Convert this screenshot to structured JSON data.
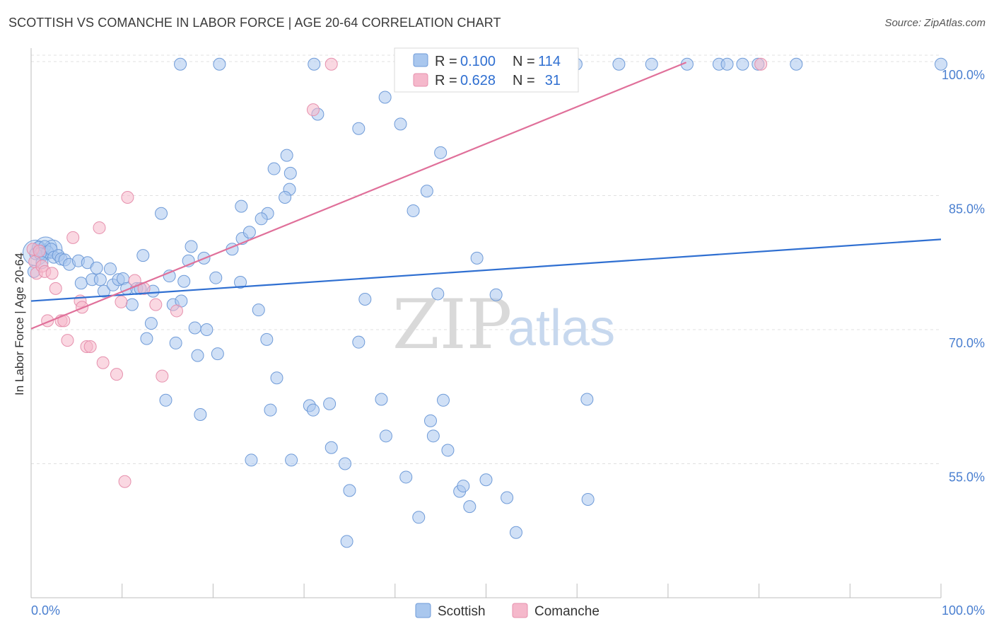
{
  "header": {
    "title": "SCOTTISH VS COMANCHE IN LABOR FORCE | AGE 20-64 CORRELATION CHART",
    "source": "Source: ZipAtlas.com"
  },
  "watermark": {
    "zip": "ZIP",
    "atlas": "atlas"
  },
  "legend_box": {
    "rows": [
      {
        "r_label": "R =",
        "r_value": "0.100",
        "n_label": "N =",
        "n_value": "114",
        "color": "#a9c7ee"
      },
      {
        "r_label": "R =",
        "r_value": "0.628",
        "n_label": "N =",
        "n_value": "31",
        "color": "#f5b8cb"
      }
    ]
  },
  "bottom_legend": [
    {
      "label": "Scottish",
      "color": "#a9c7ee"
    },
    {
      "label": "Comanche",
      "color": "#f5b8cb"
    }
  ],
  "colors": {
    "scottish_fill": "#a9c7ee",
    "scottish_stroke": "#6f9bd8",
    "scottish_line": "#2f6fd1",
    "comanche_fill": "#f5b8cb",
    "comanche_stroke": "#e690ad",
    "comanche_line": "#e0709a",
    "tick_text": "#4a7fd0",
    "grid": "#e0e0e0"
  },
  "chart_data": {
    "type": "scatter",
    "title": "SCOTTISH VS COMANCHE IN LABOR FORCE | AGE 20-64 CORRELATION CHART",
    "xlabel": "",
    "ylabel": "In Labor Force | Age 20-64",
    "xlim": [
      0,
      100
    ],
    "ylim": [
      40,
      101.5
    ],
    "x_tick_labels": [
      "0.0%",
      "100.0%"
    ],
    "y_ticks": [
      55,
      70,
      85,
      100
    ],
    "y_tick_labels": [
      "55.0%",
      "70.0%",
      "85.0%",
      "100.0%"
    ],
    "grid": true,
    "legend_position": "top-center",
    "series": [
      {
        "name": "Scottish",
        "r": 0.1,
        "n": 114,
        "trend": {
          "x": [
            0,
            100
          ],
          "y": [
            73.2,
            80.1
          ]
        },
        "points": [
          [
            0.3,
            76.5
          ],
          [
            0.5,
            78.5
          ],
          [
            0.8,
            79.2
          ],
          [
            1.2,
            78.8
          ],
          [
            1.5,
            79.3
          ],
          [
            1.8,
            78.7
          ],
          [
            2.2,
            79.0
          ],
          [
            1.0,
            78.5
          ],
          [
            1.2,
            77.5
          ],
          [
            2.5,
            78.1
          ],
          [
            3.0,
            78.3
          ],
          [
            3.3,
            77.9
          ],
          [
            3.7,
            77.8
          ],
          [
            4.2,
            77.3
          ],
          [
            5.2,
            77.7
          ],
          [
            5.5,
            75.2
          ],
          [
            6.2,
            77.5
          ],
          [
            6.7,
            75.6
          ],
          [
            7.2,
            76.9
          ],
          [
            7.6,
            75.6
          ],
          [
            8.0,
            74.3
          ],
          [
            8.7,
            76.8
          ],
          [
            9.0,
            75.0
          ],
          [
            9.6,
            75.6
          ],
          [
            10.1,
            75.7
          ],
          [
            10.5,
            74.6
          ],
          [
            11.1,
            72.8
          ],
          [
            11.6,
            74.6
          ],
          [
            12.0,
            74.6
          ],
          [
            12.3,
            78.3
          ],
          [
            12.7,
            69.0
          ],
          [
            13.2,
            70.7
          ],
          [
            13.4,
            74.3
          ],
          [
            14.3,
            83.0
          ],
          [
            14.8,
            62.1
          ],
          [
            15.2,
            76.0
          ],
          [
            15.6,
            72.8
          ],
          [
            15.9,
            68.5
          ],
          [
            16.5,
            73.2
          ],
          [
            16.8,
            75.4
          ],
          [
            17.3,
            77.7
          ],
          [
            17.6,
            79.3
          ],
          [
            18.0,
            70.2
          ],
          [
            18.3,
            67.1
          ],
          [
            18.6,
            60.5
          ],
          [
            19.0,
            78.0
          ],
          [
            19.3,
            70.0
          ],
          [
            20.3,
            75.8
          ],
          [
            20.5,
            67.3
          ],
          [
            23.2,
            80.2
          ],
          [
            23.0,
            75.3
          ],
          [
            24.2,
            55.4
          ],
          [
            25.0,
            72.2
          ],
          [
            25.9,
            68.9
          ],
          [
            26.3,
            61.0
          ],
          [
            27.0,
            64.6
          ],
          [
            28.6,
            55.4
          ],
          [
            30.6,
            61.5
          ],
          [
            31.0,
            61.0
          ],
          [
            32.8,
            61.7
          ],
          [
            33.0,
            56.8
          ],
          [
            34.5,
            55.0
          ],
          [
            35.0,
            52.0
          ],
          [
            36.0,
            92.5
          ],
          [
            34.7,
            46.3
          ],
          [
            36.0,
            68.6
          ],
          [
            36.7,
            73.4
          ],
          [
            38.5,
            62.2
          ],
          [
            39.0,
            58.1
          ],
          [
            41.2,
            53.5
          ],
          [
            42.6,
            49.0
          ],
          [
            43.9,
            59.8
          ],
          [
            44.2,
            58.1
          ],
          [
            45.3,
            62.1
          ],
          [
            45.8,
            56.5
          ],
          [
            47.1,
            51.9
          ],
          [
            47.5,
            52.5
          ],
          [
            48.2,
            50.2
          ],
          [
            49.0,
            78.0
          ],
          [
            50.0,
            53.2
          ],
          [
            51.1,
            73.9
          ],
          [
            52.3,
            51.2
          ],
          [
            53.3,
            47.3
          ],
          [
            61.1,
            62.2
          ],
          [
            61.2,
            51.0
          ],
          [
            38.9,
            96.0
          ],
          [
            40.6,
            93.0
          ],
          [
            45.0,
            89.8
          ],
          [
            31.5,
            94.1
          ],
          [
            28.1,
            89.5
          ],
          [
            26.7,
            88.0
          ],
          [
            28.5,
            87.5
          ],
          [
            28.4,
            85.7
          ],
          [
            27.9,
            84.8
          ],
          [
            26.0,
            83.0
          ],
          [
            25.3,
            82.4
          ],
          [
            24.0,
            80.9
          ],
          [
            23.1,
            83.8
          ],
          [
            22.1,
            79.0
          ],
          [
            16.4,
            99.7
          ],
          [
            20.7,
            99.7
          ],
          [
            31.1,
            99.7
          ],
          [
            49.0,
            99.7
          ],
          [
            59.9,
            99.7
          ],
          [
            64.6,
            99.7
          ],
          [
            68.2,
            99.7
          ],
          [
            72.1,
            99.7
          ],
          [
            75.6,
            99.7
          ],
          [
            76.5,
            99.7
          ],
          [
            78.2,
            99.7
          ],
          [
            79.9,
            99.7
          ],
          [
            84.1,
            99.7
          ],
          [
            100.0,
            99.7
          ],
          [
            42.0,
            83.3
          ],
          [
            43.5,
            85.5
          ],
          [
            44.7,
            74.0
          ]
        ]
      },
      {
        "name": "Comanche",
        "r": 0.628,
        "n": 31,
        "trend": {
          "x": [
            0,
            72
          ],
          "y": [
            70.1,
            99.9
          ]
        },
        "points": [
          [
            0.2,
            79.0
          ],
          [
            0.4,
            77.6
          ],
          [
            0.6,
            76.3
          ],
          [
            0.9,
            78.8
          ],
          [
            1.2,
            77.1
          ],
          [
            1.5,
            76.5
          ],
          [
            1.8,
            71.0
          ],
          [
            2.3,
            76.3
          ],
          [
            2.7,
            74.6
          ],
          [
            3.3,
            71.0
          ],
          [
            3.6,
            71.0
          ],
          [
            4.0,
            68.8
          ],
          [
            4.6,
            80.3
          ],
          [
            5.4,
            73.2
          ],
          [
            5.6,
            72.5
          ],
          [
            6.1,
            68.1
          ],
          [
            6.5,
            68.1
          ],
          [
            7.5,
            81.4
          ],
          [
            7.9,
            66.3
          ],
          [
            9.4,
            65.0
          ],
          [
            9.9,
            73.1
          ],
          [
            10.6,
            84.8
          ],
          [
            11.4,
            75.5
          ],
          [
            12.4,
            74.6
          ],
          [
            13.7,
            72.8
          ],
          [
            14.4,
            64.8
          ],
          [
            16.0,
            72.1
          ],
          [
            10.3,
            53.0
          ],
          [
            31.0,
            94.6
          ],
          [
            33.0,
            99.7
          ],
          [
            80.2,
            99.7
          ]
        ]
      }
    ]
  }
}
